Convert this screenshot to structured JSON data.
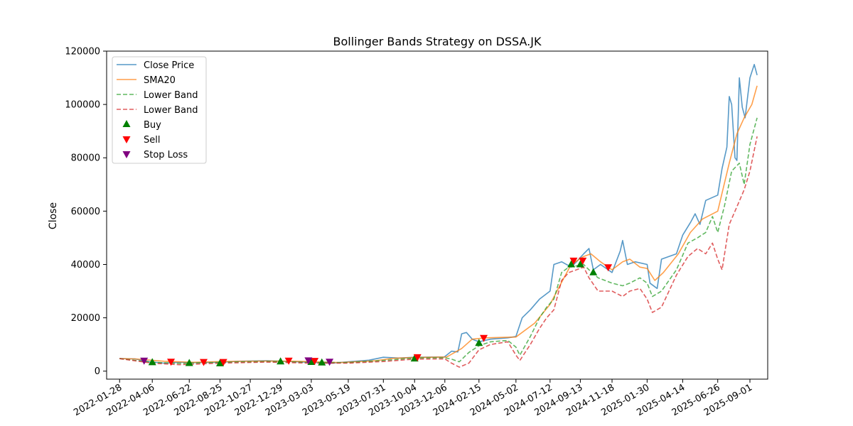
{
  "chart_data": {
    "type": "line",
    "title": "Bollinger Bands Strategy on DSSA.JK",
    "xlabel": "",
    "ylabel": "Close",
    "ylim": [
      -3000,
      120000
    ],
    "xlim": [
      "2022-01-01",
      "2025-10-08"
    ],
    "x_ticks": [
      "2022-01-28",
      "2022-04-06",
      "2022-06-22",
      "2022-08-25",
      "2022-10-27",
      "2022-12-29",
      "2023-03-03",
      "2023-05-19",
      "2023-07-31",
      "2023-10-04",
      "2023-12-06",
      "2024-02-15",
      "2024-05-02",
      "2024-07-12",
      "2024-09-13",
      "2024-11-18",
      "2025-01-30",
      "2025-04-14",
      "2025-06-26",
      "2025-09-01"
    ],
    "y_ticks": [
      0,
      20000,
      40000,
      60000,
      80000,
      100000,
      120000
    ],
    "grid": false,
    "legend_position": "top-left",
    "legend": [
      {
        "label": "Close Price",
        "kind": "line",
        "color": "#1f77b4"
      },
      {
        "label": "SMA20",
        "kind": "line",
        "color": "#ff7f0e"
      },
      {
        "label": "Lower Band",
        "kind": "dash",
        "color": "#2ca02c"
      },
      {
        "label": "Lower Band",
        "kind": "dash",
        "color": "#d62728"
      },
      {
        "label": "Buy",
        "kind": "up",
        "color": "#008000"
      },
      {
        "label": "Sell",
        "kind": "down",
        "color": "#ff0000"
      },
      {
        "label": "Stop Loss",
        "kind": "down",
        "color": "#800080"
      }
    ],
    "series": [
      {
        "name": "Close Price",
        "color": "#1f77b4",
        "style": "solid",
        "points": [
          [
            "2022-01-28",
            4700
          ],
          [
            "2022-03-01",
            4600
          ],
          [
            "2022-04-01",
            3500
          ],
          [
            "2022-05-01",
            3000
          ],
          [
            "2022-06-01",
            3300
          ],
          [
            "2022-07-01",
            3200
          ],
          [
            "2022-08-25",
            3300
          ],
          [
            "2022-10-01",
            3700
          ],
          [
            "2022-12-01",
            3900
          ],
          [
            "2023-01-20",
            3600
          ],
          [
            "2023-03-01",
            3300
          ],
          [
            "2023-04-15",
            3000
          ],
          [
            "2023-05-19",
            3500
          ],
          [
            "2023-07-01",
            4100
          ],
          [
            "2023-07-31",
            5200
          ],
          [
            "2023-09-01",
            4900
          ],
          [
            "2023-10-04",
            5200
          ],
          [
            "2023-12-05",
            5300
          ],
          [
            "2023-12-20",
            7500
          ],
          [
            "2024-01-02",
            7200
          ],
          [
            "2024-01-10",
            14000
          ],
          [
            "2024-01-20",
            14500
          ],
          [
            "2024-02-01",
            12000
          ],
          [
            "2024-02-15",
            11000
          ],
          [
            "2024-03-10",
            12000
          ],
          [
            "2024-04-15",
            12500
          ],
          [
            "2024-05-02",
            13000
          ],
          [
            "2024-05-15",
            20000
          ],
          [
            "2024-06-01",
            23000
          ],
          [
            "2024-06-20",
            27000
          ],
          [
            "2024-07-12",
            30000
          ],
          [
            "2024-07-20",
            40000
          ],
          [
            "2024-08-05",
            41000
          ],
          [
            "2024-08-25",
            39000
          ],
          [
            "2024-09-05",
            41000
          ],
          [
            "2024-09-20",
            44000
          ],
          [
            "2024-10-01",
            46000
          ],
          [
            "2024-10-10",
            38000
          ],
          [
            "2024-10-25",
            40000
          ],
          [
            "2024-11-18",
            37000
          ],
          [
            "2024-12-05",
            45000
          ],
          [
            "2024-12-10",
            49000
          ],
          [
            "2024-12-20",
            40000
          ],
          [
            "2025-01-05",
            41000
          ],
          [
            "2025-01-30",
            40000
          ],
          [
            "2025-02-05",
            33000
          ],
          [
            "2025-02-20",
            31000
          ],
          [
            "2025-03-01",
            42000
          ],
          [
            "2025-04-01",
            44000
          ],
          [
            "2025-04-14",
            51000
          ],
          [
            "2025-05-01",
            56000
          ],
          [
            "2025-05-10",
            59000
          ],
          [
            "2025-05-20",
            55000
          ],
          [
            "2025-06-01",
            64000
          ],
          [
            "2025-06-26",
            66000
          ],
          [
            "2025-07-05",
            76000
          ],
          [
            "2025-07-15",
            84000
          ],
          [
            "2025-07-20",
            103000
          ],
          [
            "2025-07-25",
            100000
          ],
          [
            "2025-08-01",
            80000
          ],
          [
            "2025-08-05",
            79000
          ],
          [
            "2025-08-10",
            110000
          ],
          [
            "2025-08-16",
            99000
          ],
          [
            "2025-08-22",
            95000
          ],
          [
            "2025-09-01",
            110000
          ],
          [
            "2025-09-10",
            115000
          ],
          [
            "2025-09-16",
            111000
          ]
        ]
      },
      {
        "name": "SMA20",
        "color": "#ff7f0e",
        "style": "solid",
        "points": [
          [
            "2022-01-28",
            4700
          ],
          [
            "2022-03-01",
            4600
          ],
          [
            "2022-05-01",
            3700
          ],
          [
            "2022-07-01",
            3300
          ],
          [
            "2022-09-01",
            3600
          ],
          [
            "2022-12-01",
            3800
          ],
          [
            "2023-02-01",
            3700
          ],
          [
            "2023-05-01",
            3200
          ],
          [
            "2023-07-15",
            3900
          ],
          [
            "2023-08-20",
            4800
          ],
          [
            "2023-10-04",
            5100
          ],
          [
            "2023-12-10",
            5300
          ],
          [
            "2024-01-10",
            8500
          ],
          [
            "2024-02-01",
            12000
          ],
          [
            "2024-03-01",
            12500
          ],
          [
            "2024-05-02",
            12800
          ],
          [
            "2024-06-10",
            18000
          ],
          [
            "2024-07-12",
            25000
          ],
          [
            "2024-08-10",
            35000
          ],
          [
            "2024-08-25",
            40000
          ],
          [
            "2024-09-20",
            43000
          ],
          [
            "2024-10-05",
            44000
          ],
          [
            "2024-10-25",
            41000
          ],
          [
            "2024-11-18",
            38000
          ],
          [
            "2024-12-10",
            41000
          ],
          [
            "2024-12-25",
            42000
          ],
          [
            "2025-01-15",
            39000
          ],
          [
            "2025-01-30",
            38500
          ],
          [
            "2025-02-15",
            34000
          ],
          [
            "2025-03-05",
            37000
          ],
          [
            "2025-04-05",
            44000
          ],
          [
            "2025-04-30",
            52000
          ],
          [
            "2025-05-25",
            57000
          ],
          [
            "2025-06-26",
            60000
          ],
          [
            "2025-07-20",
            78000
          ],
          [
            "2025-08-05",
            89000
          ],
          [
            "2025-08-20",
            95000
          ],
          [
            "2025-09-05",
            100000
          ],
          [
            "2025-09-16",
            107000
          ]
        ]
      },
      {
        "name": "Lower Band",
        "color": "#2ca02c",
        "style": "dash",
        "points": [
          [
            "2022-01-28",
            4700
          ],
          [
            "2022-04-06",
            3300
          ],
          [
            "2022-06-01",
            2900
          ],
          [
            "2022-08-25",
            3300
          ],
          [
            "2022-12-01",
            3600
          ],
          [
            "2023-03-03",
            3300
          ],
          [
            "2023-05-19",
            3200
          ],
          [
            "2023-07-31",
            4000
          ],
          [
            "2023-10-04",
            4900
          ],
          [
            "2023-12-06",
            5000
          ],
          [
            "2023-12-20",
            4500
          ],
          [
            "2024-01-05",
            3500
          ],
          [
            "2024-01-25",
            7000
          ],
          [
            "2024-02-15",
            9500
          ],
          [
            "2024-03-10",
            11000
          ],
          [
            "2024-04-15",
            11500
          ],
          [
            "2024-05-02",
            9000
          ],
          [
            "2024-05-10",
            6000
          ],
          [
            "2024-06-01",
            13000
          ],
          [
            "2024-06-20",
            20000
          ],
          [
            "2024-07-05",
            24000
          ],
          [
            "2024-07-20",
            27000
          ],
          [
            "2024-08-05",
            37000
          ],
          [
            "2024-08-20",
            39000
          ],
          [
            "2024-09-05",
            39500
          ],
          [
            "2024-09-20",
            40000
          ],
          [
            "2024-10-01",
            38000
          ],
          [
            "2024-10-20",
            35000
          ],
          [
            "2024-11-18",
            33000
          ],
          [
            "2024-12-10",
            32000
          ],
          [
            "2024-12-25",
            33000
          ],
          [
            "2025-01-15",
            35000
          ],
          [
            "2025-01-30",
            33000
          ],
          [
            "2025-02-10",
            28000
          ],
          [
            "2025-03-01",
            30000
          ],
          [
            "2025-04-01",
            38000
          ],
          [
            "2025-04-25",
            48000
          ],
          [
            "2025-05-15",
            50000
          ],
          [
            "2025-06-01",
            52000
          ],
          [
            "2025-06-15",
            58000
          ],
          [
            "2025-06-26",
            52000
          ],
          [
            "2025-07-10",
            62000
          ],
          [
            "2025-07-25",
            75000
          ],
          [
            "2025-08-10",
            78000
          ],
          [
            "2025-08-20",
            70000
          ],
          [
            "2025-09-01",
            85000
          ],
          [
            "2025-09-16",
            95000
          ]
        ]
      },
      {
        "name": "Lower Band",
        "color": "#d62728",
        "style": "dash",
        "points": [
          [
            "2022-01-28",
            4700
          ],
          [
            "2022-04-06",
            3000
          ],
          [
            "2022-06-01",
            2400
          ],
          [
            "2022-08-25",
            3000
          ],
          [
            "2022-12-01",
            3400
          ],
          [
            "2023-03-03",
            3000
          ],
          [
            "2023-05-19",
            3000
          ],
          [
            "2023-07-31",
            3600
          ],
          [
            "2023-10-04",
            4500
          ],
          [
            "2023-12-06",
            4600
          ],
          [
            "2023-12-20",
            3000
          ],
          [
            "2024-01-05",
            1500
          ],
          [
            "2024-01-25",
            3000
          ],
          [
            "2024-02-15",
            8000
          ],
          [
            "2024-03-10",
            10000
          ],
          [
            "2024-04-15",
            11000
          ],
          [
            "2024-05-02",
            6000
          ],
          [
            "2024-05-10",
            4000
          ],
          [
            "2024-06-01",
            10000
          ],
          [
            "2024-06-20",
            16000
          ],
          [
            "2024-07-05",
            20000
          ],
          [
            "2024-07-20",
            23000
          ],
          [
            "2024-08-05",
            34000
          ],
          [
            "2024-08-20",
            37000
          ],
          [
            "2024-09-05",
            38000
          ],
          [
            "2024-09-20",
            39000
          ],
          [
            "2024-10-01",
            35000
          ],
          [
            "2024-10-20",
            30000
          ],
          [
            "2024-11-18",
            30000
          ],
          [
            "2024-12-10",
            28000
          ],
          [
            "2024-12-25",
            30000
          ],
          [
            "2025-01-15",
            31000
          ],
          [
            "2025-01-30",
            27000
          ],
          [
            "2025-02-10",
            22000
          ],
          [
            "2025-03-01",
            24000
          ],
          [
            "2025-04-01",
            36000
          ],
          [
            "2025-04-25",
            43000
          ],
          [
            "2025-05-15",
            46000
          ],
          [
            "2025-06-01",
            44000
          ],
          [
            "2025-06-15",
            48000
          ],
          [
            "2025-06-26",
            42000
          ],
          [
            "2025-07-05",
            38000
          ],
          [
            "2025-07-20",
            55000
          ],
          [
            "2025-08-01",
            60000
          ],
          [
            "2025-08-20",
            68000
          ],
          [
            "2025-09-01",
            75000
          ],
          [
            "2025-09-16",
            88000
          ]
        ]
      }
    ],
    "markers": {
      "buy": [
        [
          "2022-04-06",
          3300
        ],
        [
          "2022-06-22",
          3000
        ],
        [
          "2022-08-25",
          2900
        ],
        [
          "2022-12-29",
          3600
        ],
        [
          "2023-03-03",
          3400
        ],
        [
          "2023-03-25",
          3200
        ],
        [
          "2023-10-04",
          4700
        ],
        [
          "2024-02-15",
          10500
        ],
        [
          "2024-08-25",
          40000
        ],
        [
          "2024-09-13",
          40000
        ],
        [
          "2024-10-10",
          37000
        ]
      ],
      "sell": [
        [
          "2022-05-15",
          3600
        ],
        [
          "2022-07-22",
          3500
        ],
        [
          "2022-09-01",
          3500
        ],
        [
          "2023-01-15",
          4000
        ],
        [
          "2023-03-10",
          3900
        ],
        [
          "2023-10-10",
          5300
        ],
        [
          "2024-02-25",
          12500
        ],
        [
          "2024-08-30",
          41500
        ],
        [
          "2024-09-18",
          41500
        ],
        [
          "2024-11-10",
          39000
        ]
      ],
      "stop_loss": [
        [
          "2022-03-20",
          4000
        ],
        [
          "2023-02-25",
          4100
        ],
        [
          "2023-04-10",
          3600
        ]
      ]
    }
  }
}
